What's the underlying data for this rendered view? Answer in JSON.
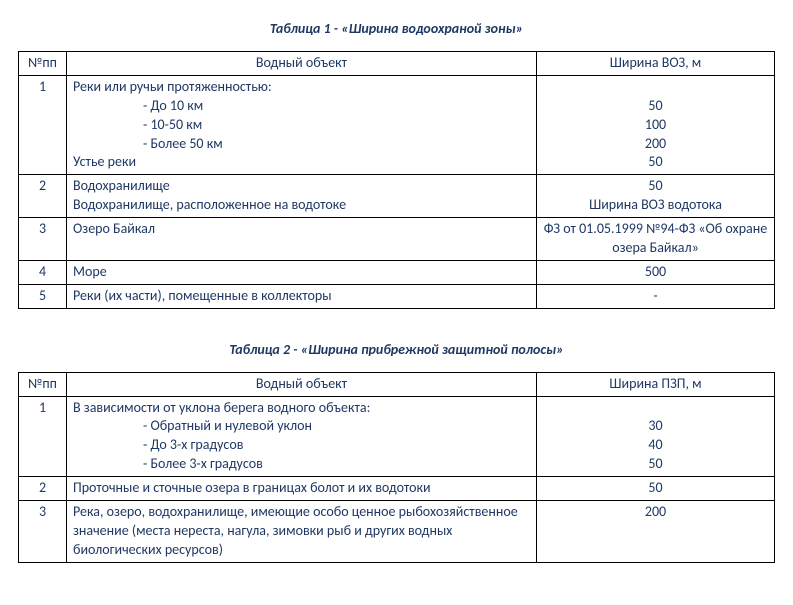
{
  "colors": {
    "text": "#1f3864",
    "border": "#000000",
    "background": "#ffffff"
  },
  "typography": {
    "font_family": "Calibri",
    "base_size_pt": 10.5,
    "title_style": "bold-italic"
  },
  "table1": {
    "title": "Таблица 1 - «Ширина водоохраной зоны»",
    "columns": [
      "№пп",
      "Водный объект",
      "Ширина ВОЗ, м"
    ],
    "column_align": [
      "center",
      "left",
      "center"
    ],
    "rows": [
      {
        "num": "1",
        "object_lines": [
          "Реки или ручьи протяженностью:",
          "- До 10 км",
          "- 10-50 км",
          "- Более 50 км",
          "Устье реки"
        ],
        "object_indent": [
          false,
          true,
          true,
          true,
          false
        ],
        "value_lines": [
          "",
          "50",
          "100",
          "200",
          "50"
        ]
      },
      {
        "num": "2",
        "object_lines": [
          "Водохранилище",
          "Водохранилище, расположенное на водотоке"
        ],
        "object_indent": [
          false,
          false
        ],
        "value_lines": [
          "50",
          "Ширина ВОЗ водотока"
        ]
      },
      {
        "num": "3",
        "object_lines": [
          "Озеро Байкал"
        ],
        "object_indent": [
          false
        ],
        "value_lines": [
          "ФЗ от 01.05.1999 №94-ФЗ «Об охране озера Байкал»"
        ]
      },
      {
        "num": "4",
        "object_lines": [
          "Море"
        ],
        "object_indent": [
          false
        ],
        "value_lines": [
          "500"
        ]
      },
      {
        "num": "5",
        "object_lines": [
          "Реки (их части), помещенные в коллекторы"
        ],
        "object_indent": [
          false
        ],
        "value_lines": [
          "-"
        ]
      }
    ]
  },
  "table2": {
    "title": "Таблица 2 - «Ширина прибрежной защитной полосы»",
    "columns": [
      "№пп",
      "Водный объект",
      "Ширина ПЗП, м"
    ],
    "column_align": [
      "center",
      "left",
      "center"
    ],
    "rows": [
      {
        "num": "1",
        "object_lines": [
          "В зависимости от уклона берега водного объекта:",
          "- Обратный и нулевой уклон",
          "- До 3-х градусов",
          "- Более 3-х градусов"
        ],
        "object_indent": [
          false,
          true,
          true,
          true
        ],
        "value_lines": [
          "",
          "30",
          "40",
          "50"
        ]
      },
      {
        "num": "2",
        "object_lines": [
          "Проточные и сточные озера в границах болот и их водотоки"
        ],
        "object_indent": [
          false
        ],
        "value_lines": [
          "50"
        ]
      },
      {
        "num": "3",
        "object_lines": [
          "Река, озеро, водохранилище, имеющие особо ценное рыбохозяйственное значение (места нереста, нагула, зимовки рыб и других водных биологических ресурсов)"
        ],
        "object_indent": [
          false
        ],
        "value_lines": [
          "200"
        ]
      }
    ]
  }
}
